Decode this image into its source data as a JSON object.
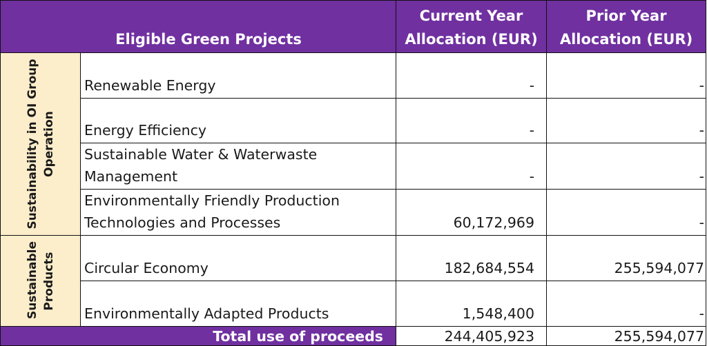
{
  "header": {
    "projects": "Eligible Green Projects",
    "current_year": "Current Year Allocation (EUR)",
    "prior_year": "Prior Year Allocation (EUR)"
  },
  "groups": [
    {
      "label": "Sustainability in OI Group Operation"
    },
    {
      "label": "Sustainable Products"
    }
  ],
  "rows": [
    {
      "project": "Renewable Energy",
      "current": "-",
      "prior": "-"
    },
    {
      "project": "Energy Efficiency",
      "current": "-",
      "prior": "-"
    },
    {
      "project": "Sustainable Water & Waterwaste Management",
      "current": "-",
      "prior": "-"
    },
    {
      "project": "Environmentally Friendly Production Technologies and Processes",
      "current": "60,172,969",
      "prior": "-"
    },
    {
      "project": "Circular Economy",
      "current": "182,684,554",
      "prior": "255,594,077"
    },
    {
      "project": "Environmentally Adapted Products",
      "current": "1,548,400",
      "prior": "-"
    }
  ],
  "total": {
    "label": "Total use of proceeds",
    "current": "244,405,923",
    "prior": "255,594,077"
  }
}
